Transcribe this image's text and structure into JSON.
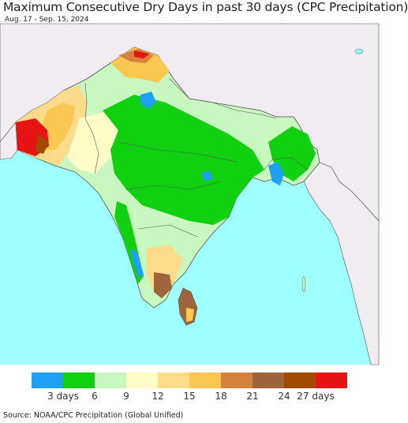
{
  "header": {
    "title": "Maximum Consecutive Dry Days in past 30 days (CPC Precipitation)",
    "date_range": "Aug. 17 - Sep. 15, 2024"
  },
  "legend": {
    "colors": [
      "#1ea0f5",
      "#10d010",
      "#c8f8c0",
      "#fffcc8",
      "#ffdc8c",
      "#fac850",
      "#d7823c",
      "#a0643c",
      "#a04b00",
      "#e61414"
    ],
    "labels": [
      {
        "text": "3 days",
        "value": 3
      },
      {
        "text": "6",
        "value": 6
      },
      {
        "text": "9",
        "value": 9
      },
      {
        "text": "12",
        "value": 12
      },
      {
        "text": "15",
        "value": 15
      },
      {
        "text": "18",
        "value": 18
      },
      {
        "text": "21",
        "value": 21
      },
      {
        "text": "24",
        "value": 24
      },
      {
        "text": "27 days",
        "value": 27
      }
    ]
  },
  "colors": {
    "ocean": "#a0ffff",
    "outside_land": "#f0ecf2",
    "border": "#555555"
  },
  "footer": {
    "source": "Source: NOAA/CPC Precipitation (Global Unified)"
  }
}
